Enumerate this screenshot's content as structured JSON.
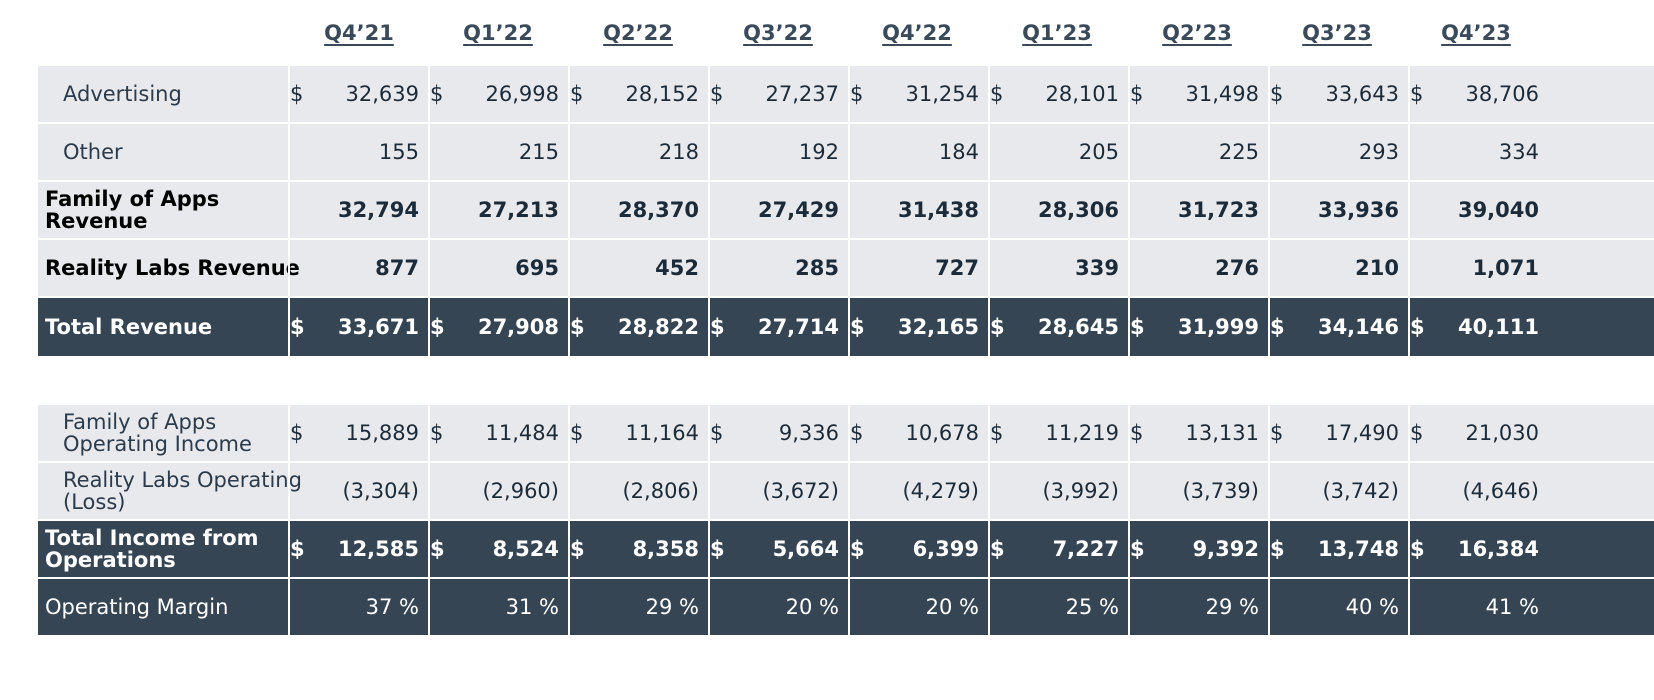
{
  "quarters": [
    "Q4’21",
    "Q1’22",
    "Q2’22",
    "Q3’22",
    "Q4’22",
    "Q1’23",
    "Q2’23",
    "Q3’23",
    "Q4’23"
  ],
  "currency_symbol": "$",
  "revenue_table": {
    "rows": [
      {
        "label": "Advertising",
        "style": "indent",
        "dollar": true,
        "values": [
          "32,639",
          "26,998",
          "28,152",
          "27,237",
          "31,254",
          "28,101",
          "31,498",
          "33,643",
          "38,706"
        ]
      },
      {
        "label": "Other",
        "style": "indent",
        "dollar": false,
        "values": [
          "155",
          "215",
          "218",
          "192",
          "184",
          "205",
          "225",
          "293",
          "334"
        ]
      },
      {
        "label": "Family of Apps Revenue",
        "style": "bold",
        "dollar": false,
        "values": [
          "32,794",
          "27,213",
          "28,370",
          "27,429",
          "31,438",
          "28,306",
          "31,723",
          "33,936",
          "39,040"
        ]
      },
      {
        "label": "Reality Labs Revenue",
        "style": "bold",
        "dollar": false,
        "values": [
          "877",
          "695",
          "452",
          "285",
          "727",
          "339",
          "276",
          "210",
          "1,071"
        ]
      },
      {
        "label": "Total Revenue",
        "style": "dark",
        "dollar": true,
        "values": [
          "33,671",
          "27,908",
          "28,822",
          "27,714",
          "32,165",
          "28,645",
          "31,999",
          "34,146",
          "40,111"
        ]
      }
    ]
  },
  "income_table": {
    "rows": [
      {
        "label": "Family of Apps Operating Income",
        "style": "indent",
        "dollar": true,
        "values": [
          "15,889",
          "11,484",
          "11,164",
          "9,336",
          "10,678",
          "11,219",
          "13,131",
          "17,490",
          "21,030"
        ]
      },
      {
        "label": "Reality Labs Operating (Loss)",
        "style": "indent",
        "dollar": false,
        "values": [
          "(3,304)",
          "(2,960)",
          "(2,806)",
          "(3,672)",
          "(4,279)",
          "(3,992)",
          "(3,739)",
          "(3,742)",
          "(4,646)"
        ]
      },
      {
        "label": "Total Income from Operations",
        "style": "dark",
        "dollar": true,
        "values": [
          "12,585",
          "8,524",
          "8,358",
          "5,664",
          "6,399",
          "7,227",
          "9,392",
          "13,748",
          "16,384"
        ]
      },
      {
        "label": "Operating Margin",
        "style": "dark-plain",
        "dollar": false,
        "values": [
          "37 %",
          "31 %",
          "29 %",
          "20 %",
          "20 %",
          "25 %",
          "29 %",
          "40 %",
          "41 %"
        ]
      }
    ]
  }
}
